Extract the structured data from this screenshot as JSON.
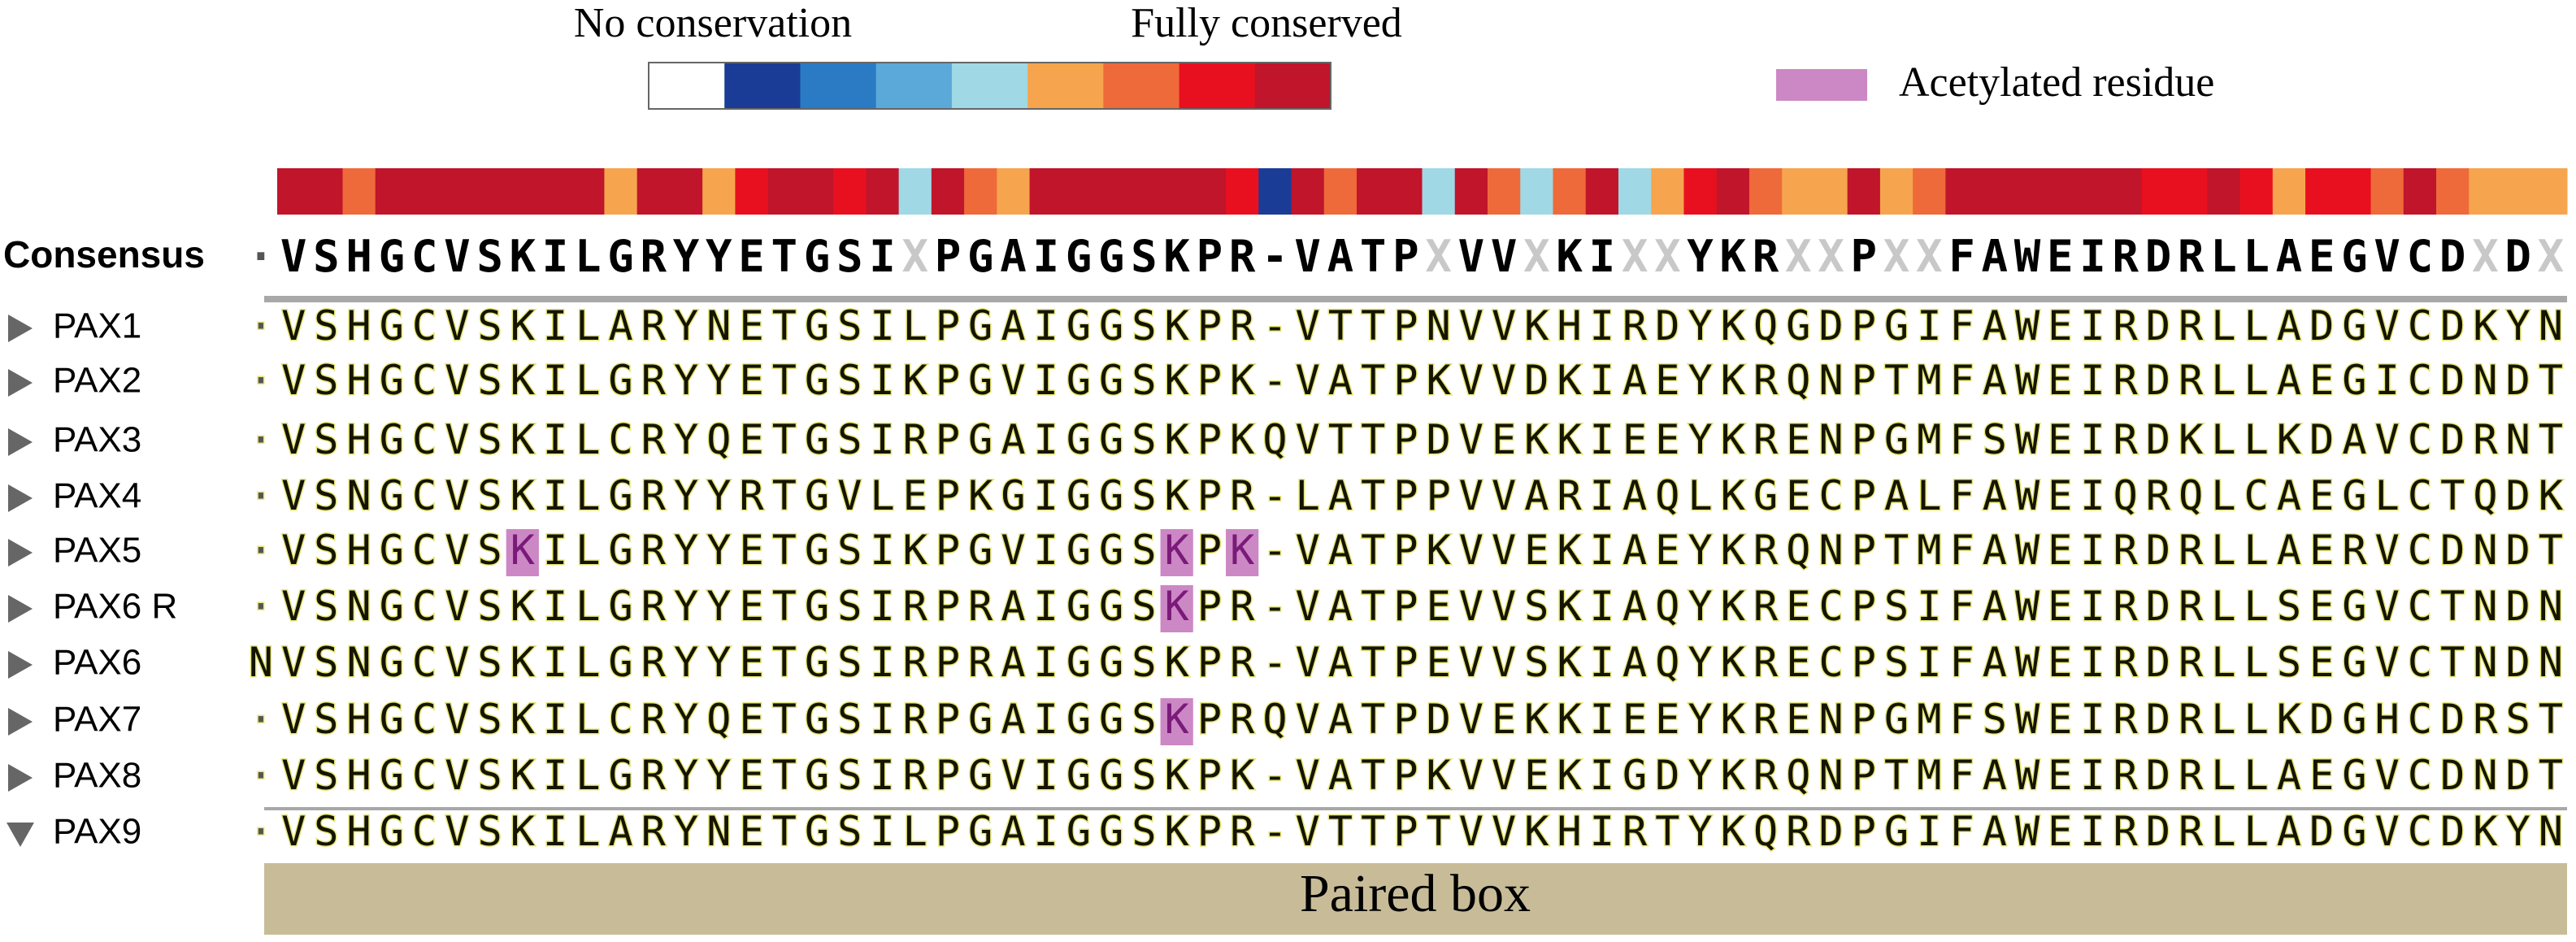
{
  "legend": {
    "low_label": "No conservation",
    "high_label": "Fully conserved",
    "scale_colors": [
      "#ffffff",
      "#1a3c96",
      "#2a7bc4",
      "#5ba9d8",
      "#a0d8e6",
      "#f6a54e",
      "#ee6a3a",
      "#e8101f",
      "#c0152a"
    ],
    "acetylated_label": "Acetylated residue",
    "acetylated_color": "#cc88c4"
  },
  "conservation_colors": [
    "#c0152a",
    "#c0152a",
    "#ee6a3a",
    "#c0152a",
    "#c0152a",
    "#c0152a",
    "#c0152a",
    "#c0152a",
    "#c0152a",
    "#c0152a",
    "#f6a54e",
    "#c0152a",
    "#c0152a",
    "#f6a54e",
    "#e8101f",
    "#c0152a",
    "#c0152a",
    "#e8101f",
    "#c0152a",
    "#a0d8e6",
    "#c0152a",
    "#ee6a3a",
    "#f6a54e",
    "#c0152a",
    "#c0152a",
    "#c0152a",
    "#c0152a",
    "#c0152a",
    "#c0152a",
    "#e8101f",
    "#1a3c96",
    "#c0152a",
    "#ee6a3a",
    "#c0152a",
    "#c0152a",
    "#a0d8e6",
    "#c0152a",
    "#ee6a3a",
    "#a0d8e6",
    "#ee6a3a",
    "#c0152a",
    "#a0d8e6",
    "#f6a54e",
    "#e8101f",
    "#c0152a",
    "#ee6a3a",
    "#f6a54e",
    "#f6a54e",
    "#c0152a",
    "#f6a54e",
    "#ee6a3a",
    "#c0152a",
    "#c0152a",
    "#c0152a",
    "#c0152a",
    "#c0152a",
    "#c0152a",
    "#e8101f",
    "#e8101f",
    "#c0152a",
    "#e8101f",
    "#f6a54e",
    "#e8101f",
    "#e8101f",
    "#ee6a3a",
    "#c0152a",
    "#ee6a3a",
    "#f6a54e",
    "#f6a54e",
    "#f6a54e"
  ],
  "consensus": {
    "label": "Consensus",
    "sequence": "·VSHGCVSKILGRYYETGSIXPGAIGGSKPR-VATPXVVXKIXXYKRXXPXXFAWEIRDRLLAEGVCDXDX"
  },
  "rows": [
    {
      "name": "PAX1",
      "sequence": "·VSHGCVSKILARYNETGSILPGAIGGSKPR-VTTPNVVKHIRDYKQGDPGIFAWEIRDRLLADGVCDKYN",
      "acetylated": []
    },
    {
      "name": "PAX2",
      "sequence": "·VSHGCVSKILGRYYETGSIKPGVIGGSKPK-VATPKVVDKIAEYKRQNPTMFAWEIRDRLLAEGICDNDT",
      "acetylated": []
    },
    {
      "name": "PAX3",
      "sequence": "·VSHGCVSKILCRYQETGSIRPGAIGGSKPKQVTTPDVEKKIEEYKRENPGMFSWEIRDKLLKDAVCDRNT",
      "acetylated": []
    },
    {
      "name": "PAX4",
      "sequence": "·VSNGCVSKILGRYYRTGVLEPKGIGGSKPR-LATPPVVARIAQLKGECPALFAWEIQRQLCAEGLCTQDK",
      "acetylated": []
    },
    {
      "name": "PAX5",
      "sequence": "·VSHGCVSKILGRYYETGSIKPGVIGGSKPK-VATPKVVEKIAEYKRQNPTMFAWEIRDRLLAERVCDNDT",
      "acetylated": [
        8,
        28,
        30
      ]
    },
    {
      "name": "PAX6 R",
      "sequence": "·VSNGCVSKILGRYYETGSIRPRAIGGSKPR-VATPEVVSKIAQYKRECPSIFAWEIRDRLLSEGVCTNDN",
      "acetylated": [
        28
      ]
    },
    {
      "name": "PAX6",
      "sequence": "NVSNGCVSKILGRYYETGSIRPRAIGGSKPR-VATPEVVSKIAQYKRECPSIFAWEIRDRLLSEGVCTNDN",
      "acetylated": []
    },
    {
      "name": "PAX7",
      "sequence": "·VSHGCVSKILCRYQETGSIRPGAIGGSKPRQVATPDVEKKIEEYKRENPGMFSWEIRDRLLKDGHCDRST",
      "acetylated": [
        28
      ]
    },
    {
      "name": "PAX8",
      "sequence": "·VSHGCVSKILGRYYETGSIRPGVIGGSKPK-VATPKVVEKIGDYKRQNPTMFAWEIRDRLLAEGVCDNDT",
      "acetylated": []
    },
    {
      "name": "PAX9",
      "sequence": "·VSHGCVSKILARYNETGSILPGAIGGSKPR-VTTPTVVKHIRTYKQRDPGIFAWEIRDRLLADGVCDKYN",
      "acetylated": []
    }
  ],
  "domain_label": "Paired box"
}
